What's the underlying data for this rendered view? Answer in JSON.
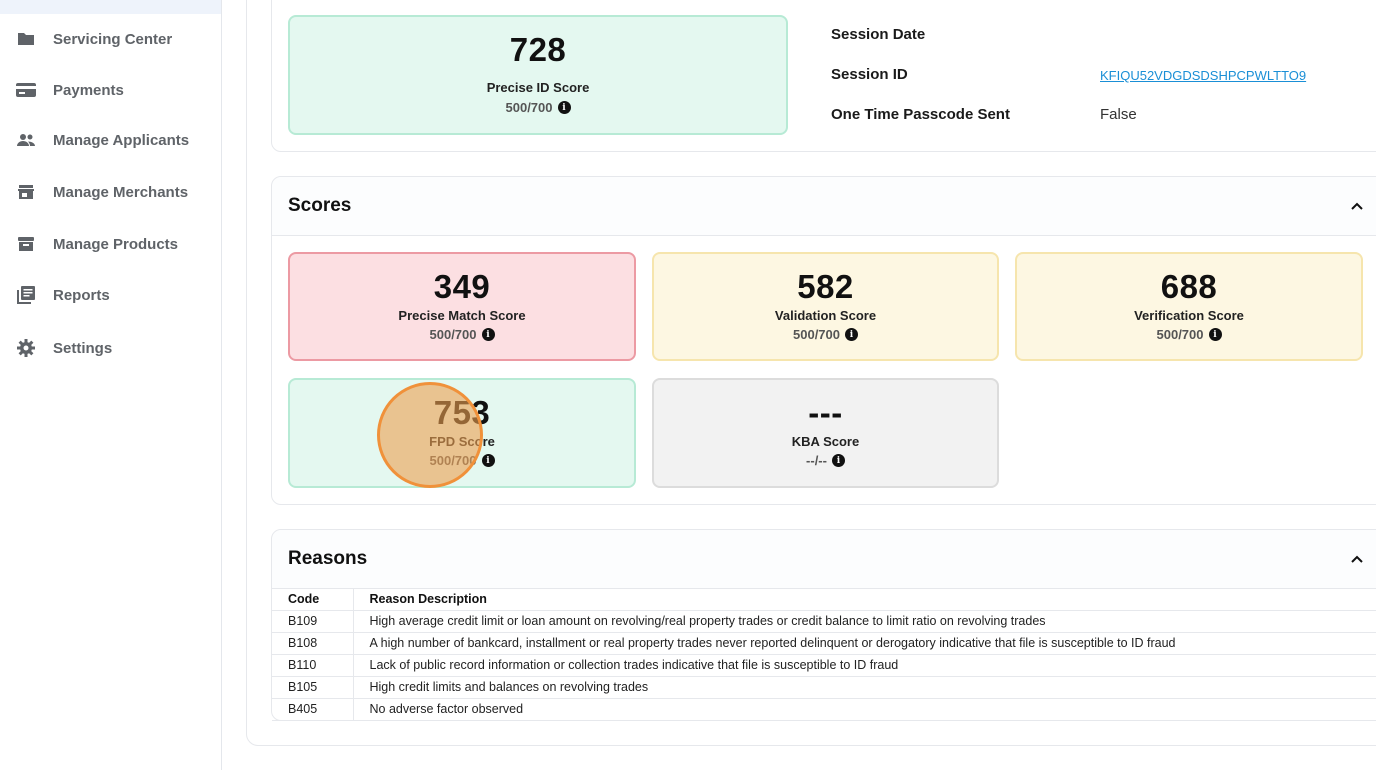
{
  "sidebar": {
    "items": [
      {
        "label": "Servicing Center",
        "icon": "folder-icon"
      },
      {
        "label": "Payments",
        "icon": "credit-card-icon"
      },
      {
        "label": "Manage Applicants",
        "icon": "people-icon"
      },
      {
        "label": "Manage Merchants",
        "icon": "store-icon"
      },
      {
        "label": "Manage Products",
        "icon": "archive-box-icon"
      },
      {
        "label": "Reports",
        "icon": "library-books-icon"
      },
      {
        "label": "Settings",
        "icon": "gear-icon"
      }
    ]
  },
  "top_card": {
    "score": "728",
    "name": "Precise ID Score",
    "range": "500/700"
  },
  "session": {
    "date_label": "Session Date",
    "date_value": "",
    "id_label": "Session ID",
    "id_value": "KFIQU52VDGDSDSHPCPWLTTO9",
    "otp_label": "One Time Passcode Sent",
    "otp_value": "False"
  },
  "scores": {
    "title": "Scores",
    "cards": [
      {
        "score": "349",
        "name": "Precise Match Score",
        "range": "500/700",
        "status": "red"
      },
      {
        "score": "582",
        "name": "Validation Score",
        "range": "500/700",
        "status": "yellow"
      },
      {
        "score": "688",
        "name": "Verification Score",
        "range": "500/700",
        "status": "yellow"
      },
      {
        "score": "753",
        "name": "FPD Score",
        "range": "500/700",
        "status": "green"
      },
      {
        "score": "---",
        "name": "KBA Score",
        "range": "--/--",
        "status": "grey"
      }
    ]
  },
  "reasons": {
    "title": "Reasons",
    "columns": [
      "Code",
      "Reason Description"
    ],
    "rows": [
      {
        "code": "B109",
        "desc": "High average credit limit or loan amount on revolving/real property trades or credit balance to limit ratio on revolving trades"
      },
      {
        "code": "B108",
        "desc": "A high number of bankcard, installment or real property trades never reported delinquent or derogatory indicative that file is susceptible to ID fraud"
      },
      {
        "code": "B110",
        "desc": "Lack of public record information or collection trades indicative that file is susceptible to ID fraud"
      },
      {
        "code": "B105",
        "desc": "High credit limits and balances on revolving trades"
      },
      {
        "code": "B405",
        "desc": "No adverse factor observed"
      }
    ]
  },
  "colors": {
    "green_bg": "#e4f8f0",
    "red_bg": "#fcdfe2",
    "yellow_bg": "#fdf7e2",
    "grey_bg": "#f2f2f2",
    "link": "#1a8fd6",
    "click_indicator": "#f0913a"
  }
}
